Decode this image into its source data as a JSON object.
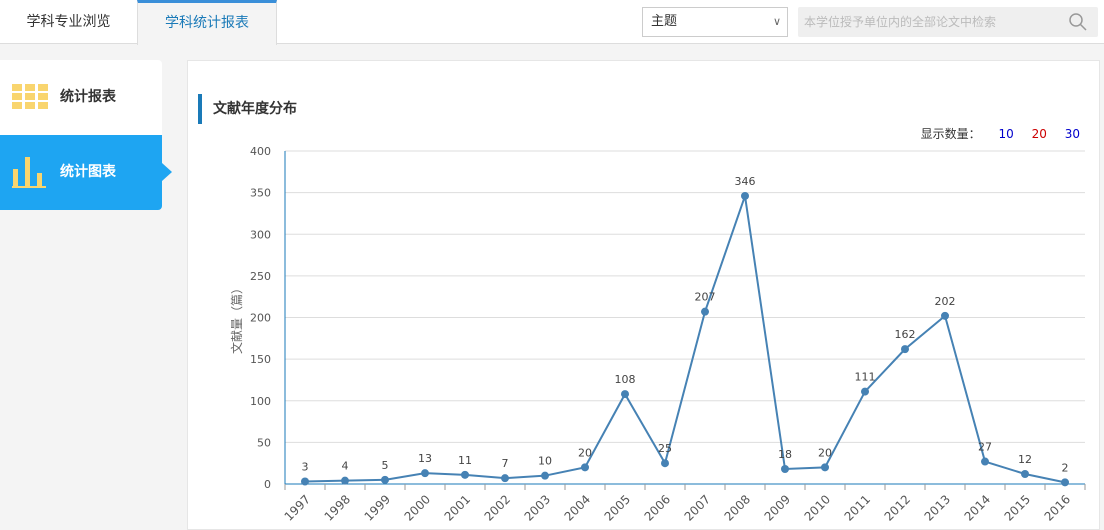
{
  "tabs": [
    {
      "label": "学科专业浏览",
      "active": false
    },
    {
      "label": "学科统计报表",
      "active": true
    }
  ],
  "search": {
    "select_value": "主题",
    "placeholder": "本学位授予单位内的全部论文中检索",
    "icon": "search-icon"
  },
  "sidebar": [
    {
      "label": "统计报表",
      "icon": "grid-icon"
    },
    {
      "label": "统计图表",
      "icon": "bar-chart-icon",
      "active": true
    }
  ],
  "panel": {
    "title": "文献年度分布",
    "count_label": "显示数量：",
    "count_options": [
      {
        "label": "10",
        "color": "#0000cc"
      },
      {
        "label": "20",
        "color": "#cc0000"
      },
      {
        "label": "30",
        "color": "#0000cc"
      }
    ]
  },
  "colors": {
    "accent": "#1ea5f2",
    "line": "#4682b4",
    "icon": "#f9d56e"
  },
  "chart_data": {
    "type": "line",
    "ylabel": "文献量（篇）",
    "ylim": [
      0,
      400
    ],
    "yticks": [
      0,
      50,
      100,
      150,
      200,
      250,
      300,
      350,
      400
    ],
    "grid": true,
    "categories": [
      "1997",
      "1998",
      "1999",
      "2000",
      "2001",
      "2002",
      "2003",
      "2004",
      "2005",
      "2006",
      "2007",
      "2008",
      "2009",
      "2010",
      "2011",
      "2012",
      "2013",
      "2014",
      "2015",
      "2016"
    ],
    "values": [
      3,
      4,
      5,
      13,
      11,
      7,
      10,
      20,
      108,
      25,
      207,
      346,
      18,
      20,
      111,
      162,
      202,
      27,
      12,
      2
    ]
  }
}
